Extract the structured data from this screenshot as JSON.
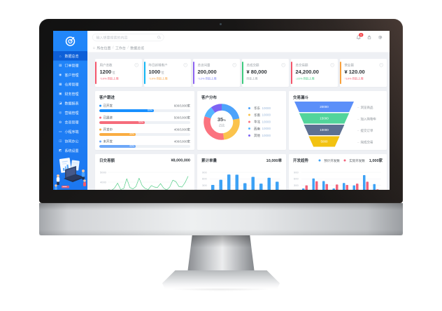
{
  "app": {
    "sidebar": {
      "items": [
        {
          "id": "overview",
          "label": "数据总览",
          "glyph": "⌂",
          "active": true
        },
        {
          "id": "orders",
          "label": "订单管理",
          "glyph": "▤",
          "active": false
        },
        {
          "id": "customers",
          "label": "客户管理",
          "glyph": "◉",
          "active": false
        },
        {
          "id": "warehouse",
          "label": "仓库管理",
          "glyph": "▦",
          "active": false
        },
        {
          "id": "finance",
          "label": "财务管理",
          "glyph": "▣",
          "active": false
        },
        {
          "id": "reports",
          "label": "数据报表",
          "glyph": "◪",
          "active": false
        },
        {
          "id": "marketing",
          "label": "营销管理",
          "glyph": "◎",
          "active": false
        },
        {
          "id": "members",
          "label": "会员管理",
          "glyph": "◍",
          "active": false
        },
        {
          "id": "mini-program",
          "label": "小程序端",
          "glyph": "▭",
          "active": false
        },
        {
          "id": "collaboration",
          "label": "协同办公",
          "glyph": "◫",
          "active": false
        },
        {
          "id": "system",
          "label": "系统设置",
          "glyph": "◩",
          "active": false
        }
      ]
    },
    "header": {
      "search_placeholder": "输入想要搜索的内容",
      "notification_badge": "5"
    },
    "breadcrumb": {
      "home_glyph": "⌂",
      "prefix": "所在位置",
      "separator": "/",
      "items": [
        "工作台",
        "数据总览"
      ]
    },
    "kpi_cards": [
      {
        "id": "total-users",
        "label": "用户总数",
        "value": "1200",
        "suffix": "位",
        "trend": "↑10% 同比上周",
        "trend_color": "#f5566b",
        "accent": "#f5566b"
      },
      {
        "id": "new-customers",
        "label": "昨日新增客户",
        "value": "1000",
        "suffix": "位",
        "trend": "↑10% 同比上周",
        "trend_color": "#f9a13c",
        "accent": "#12b7f5"
      },
      {
        "id": "total-visits",
        "label": "总访问量",
        "value": "200,000",
        "suffix": "",
        "trend": "↑12% 同比上周",
        "trend_color": "#7a7ff0",
        "accent": "#8d64f2"
      },
      {
        "id": "total-deals",
        "label": "总成交额",
        "value": "¥ 80,000",
        "suffix": "",
        "trend": "同比上周",
        "trend_color": "#9aa0a6",
        "accent": "#3ecb7e"
      },
      {
        "id": "total-trade",
        "label": "总交易额",
        "value": "24,200.00",
        "suffix": "",
        "trend": "↓22% 同比上周",
        "trend_color": "#3ecb7e",
        "accent": "#f5566b"
      },
      {
        "id": "revenue",
        "label": "营业额",
        "value": "¥ 120.00",
        "suffix": "",
        "trend": "↑10% 同比上周",
        "trend_color": "#f5566b",
        "accent": "#f9a13c"
      }
    ]
  },
  "chart_data": [
    {
      "type": "bar",
      "orientation": "horizontal",
      "title": "客户跟进",
      "items": [
        {
          "label": "已开发",
          "display": "600/1000家",
          "pct": 60,
          "pct_label": "60%",
          "color": "#1890ff"
        },
        {
          "label": "已跟进",
          "display": "500/1000家",
          "pct": 50,
          "pct_label": "50%",
          "color": "#f56c7b"
        },
        {
          "label": "开发中",
          "display": "400/1000家",
          "pct": 40,
          "pct_label": "40%",
          "color": "#faad42"
        },
        {
          "label": "未开发",
          "display": "400/1000家",
          "pct": 40,
          "pct_label": "40%",
          "color": "#6ea8f8"
        }
      ]
    },
    {
      "type": "pie",
      "subtype": "donut",
      "title": "客户分布",
      "center_value": "35",
      "center_unit": "%",
      "center_label": "占比",
      "slices": [
        {
          "name": "华东",
          "value": "10000",
          "pct": 22,
          "color": "#4da3fb"
        },
        {
          "name": "华南",
          "value": "10000",
          "pct": 26,
          "color": "#fbc34c"
        },
        {
          "name": "华北",
          "value": "10000",
          "pct": 32,
          "color": "#fb737f"
        },
        {
          "name": "西南",
          "value": "10000",
          "pct": 10,
          "color": "#55b6ff"
        },
        {
          "name": "其他",
          "value": "10000",
          "pct": 10,
          "color": "#7d63f3"
        }
      ]
    },
    {
      "type": "funnel",
      "title": "交易漏斗",
      "tiers": [
        {
          "value": "20000",
          "label": "浏览商品",
          "color": "#5b8ff9"
        },
        {
          "value": "15000",
          "label": "加入购物车",
          "color": "#52d49b"
        },
        {
          "value": "10000",
          "label": "提交订单",
          "color": "#5d7092"
        },
        {
          "value": "5000",
          "label": "完成交易",
          "color": "#f2c211"
        }
      ]
    },
    {
      "type": "line",
      "title": "日交易额",
      "total": "¥8,000,000",
      "color": "#45c97d",
      "yticks": [
        5000,
        4000,
        3000
      ],
      "ymin": 3000,
      "ymax": 5000,
      "values": [
        3250,
        3150,
        3400,
        3900,
        3250,
        3350,
        4350,
        3450,
        3300,
        3550,
        4400,
        3650,
        3350,
        3250,
        3650,
        3500,
        3450,
        3850,
        3400,
        3200,
        3500,
        4200,
        4050,
        3550,
        3500,
        3950,
        4600
      ]
    },
    {
      "type": "bar",
      "title": "累计单量",
      "total": "10,000单",
      "color": "#3da2f5",
      "yticks": [
        900,
        600,
        300
      ],
      "ymax": 900,
      "values": [
        320,
        560,
        800,
        790,
        400,
        690,
        380,
        650,
        470
      ]
    },
    {
      "type": "bar",
      "subtype": "grouped",
      "title": "开发趋势",
      "total": "1,000家",
      "yticks": [
        900,
        600,
        300
      ],
      "ymax": 900,
      "series": [
        {
          "name": "预计开发数",
          "color": "#3da2f5",
          "values": [
            160,
            620,
            500,
            160,
            410,
            300,
            770,
            360
          ]
        },
        {
          "name": "实际开发数",
          "color": "#f2637b",
          "values": [
            300,
            490,
            360,
            340,
            320,
            380,
            470,
            120
          ]
        }
      ]
    }
  ]
}
